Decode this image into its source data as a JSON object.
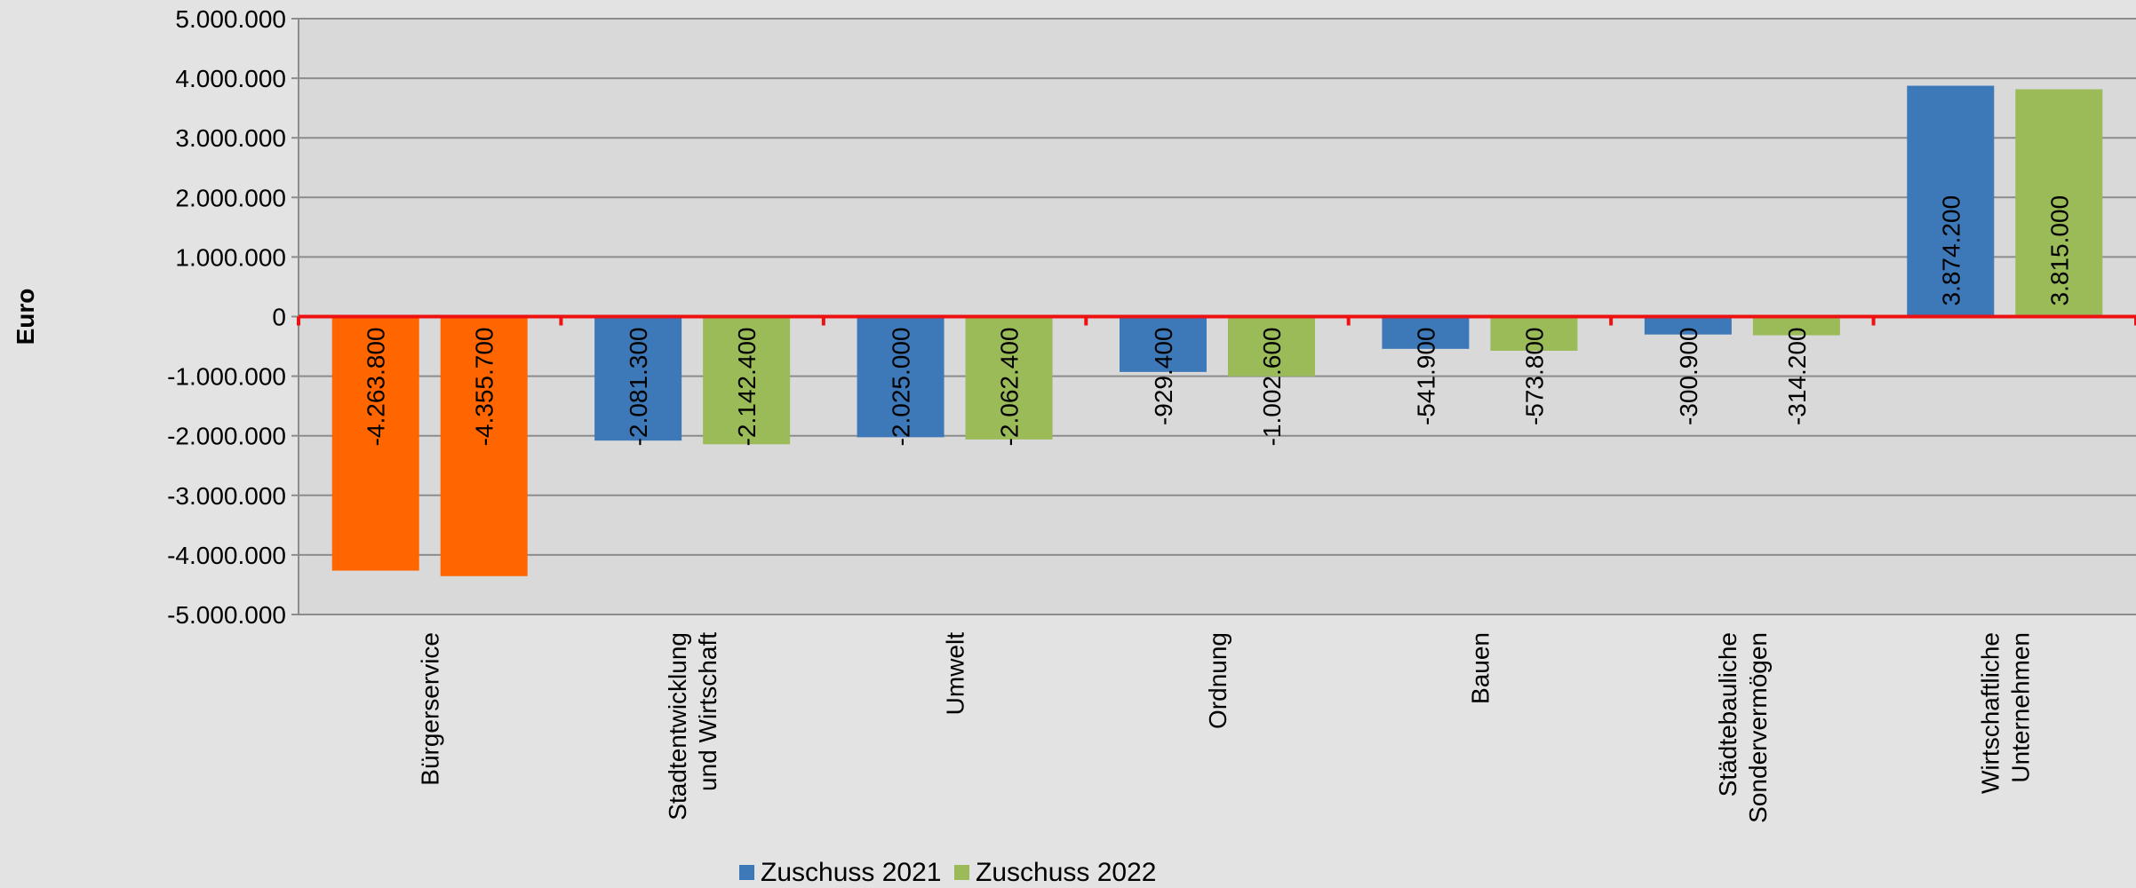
{
  "chart_data": {
    "type": "bar",
    "ylabel": "Euro",
    "ylim": [
      -5000000,
      5000000
    ],
    "yticks": [
      5000000,
      4000000,
      3000000,
      2000000,
      1000000,
      0,
      -1000000,
      -2000000,
      -3000000,
      -4000000,
      -5000000
    ],
    "ytick_labels": [
      "5.000.000",
      "4.000.000",
      "3.000.000",
      "2.000.000",
      "1.000.000",
      "0",
      "-1.000.000",
      "-2.000.000",
      "-3.000.000",
      "-4.000.000",
      "-5.000.000"
    ],
    "categories": [
      [
        "Bürgerservice"
      ],
      [
        "Stadtentwicklung",
        "und Wirtschaft"
      ],
      [
        "Umwelt"
      ],
      [
        "Ordnung"
      ],
      [
        "Bauen"
      ],
      [
        "Städtebauliche",
        "Sondervermögen"
      ],
      [
        "Wirtschaftliche",
        "Unternehmen"
      ]
    ],
    "series": [
      {
        "name": "Zuschuss 2021",
        "color": "#3d78b8",
        "values": [
          -4263800,
          -2081300,
          -2025000,
          -929400,
          -541900,
          -300900,
          3874200
        ],
        "labels": [
          "-4.263.800",
          "-2.081.300",
          "-2.025.000",
          "-929.400",
          "-541.900",
          "-300.900",
          "3.874.200"
        ]
      },
      {
        "name": "Zuschuss 2022",
        "color": "#9bbb59",
        "values": [
          -4355700,
          -2142400,
          -2062400,
          -1002600,
          -573800,
          -314200,
          3815000
        ],
        "labels": [
          "-4.355.700",
          "-2.142.400",
          "-2.062.400",
          "-1.002.600",
          "-573.800",
          "-314.200",
          "3.815.000"
        ]
      }
    ],
    "highlight_color": "#ff6600",
    "highlight_categories": [
      0
    ],
    "plot_background": "#d9d9d9",
    "page_background": "#e3e3e3",
    "gridline_color": "#8c8c8c",
    "zero_line_color": "#ee1111",
    "grid": true,
    "legend_position": "bottom"
  }
}
